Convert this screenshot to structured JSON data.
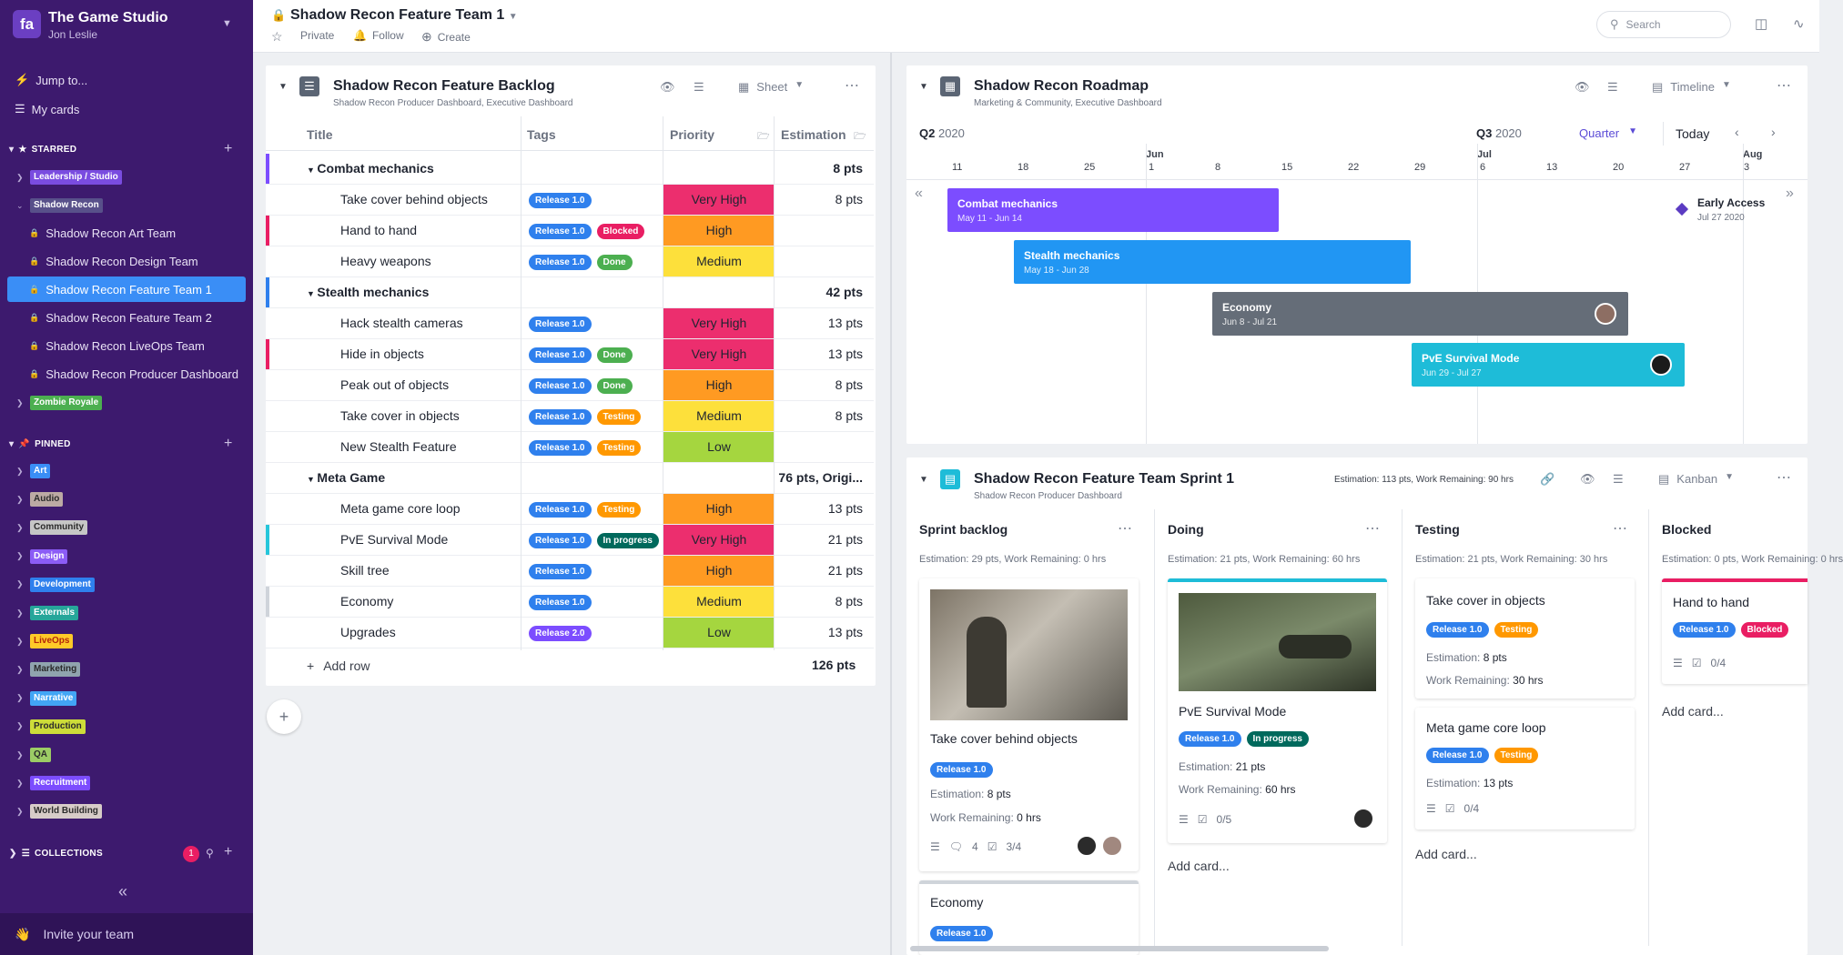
{
  "workspace": {
    "logo": "fa",
    "name": "The Game Studio",
    "user": "Jon Leslie"
  },
  "nav": {
    "jump": "Jump to...",
    "cards": "My cards"
  },
  "starred": {
    "label": "STARRED",
    "items": [
      {
        "label": "Leadership / Studio",
        "color": "#7a4ce0"
      },
      {
        "label": "Shadow Recon",
        "color": "#58508a"
      },
      {
        "label": "Zombie Royale",
        "color": "#4caf50"
      }
    ],
    "sub": [
      "Shadow Recon Art Team",
      "Shadow Recon Design Team",
      "Shadow Recon Feature Team 1",
      "Shadow Recon Feature Team 2",
      "Shadow Recon LiveOps Team",
      "Shadow Recon Producer Dashboard"
    ]
  },
  "pinned": {
    "label": "PINNED",
    "items": [
      {
        "label": "Art",
        "color": "#3a8ef6",
        "text": "#fff"
      },
      {
        "label": "Audio",
        "color": "#bcaaa4",
        "text": "#2b2b2b"
      },
      {
        "label": "Community",
        "color": "#c6c6c6",
        "text": "#2b2b2b"
      },
      {
        "label": "Design",
        "color": "#8b5cf6",
        "text": "#fff"
      },
      {
        "label": "Development",
        "color": "#2f80ed",
        "text": "#fff"
      },
      {
        "label": "Externals",
        "color": "#26a69a",
        "text": "#fff"
      },
      {
        "label": "LiveOps",
        "color": "#ffca28",
        "text": "#b3260a"
      },
      {
        "label": "Marketing",
        "color": "#90a4ae",
        "text": "#2b2b2b"
      },
      {
        "label": "Narrative",
        "color": "#42a5f5",
        "text": "#fff"
      },
      {
        "label": "Production",
        "color": "#cddc39",
        "text": "#2b2b2b"
      },
      {
        "label": "QA",
        "color": "#9ccc65",
        "text": "#2b2b2b"
      },
      {
        "label": "Recruitment",
        "color": "#7c4dff",
        "text": "#fff"
      },
      {
        "label": "World Building",
        "color": "#d7ccc8",
        "text": "#2b2b2b"
      }
    ]
  },
  "collections": {
    "label": "COLLECTIONS",
    "badge": "1"
  },
  "invite": "Invite your team",
  "doc": {
    "title": "Shadow Recon Feature Team 1",
    "private": "Private",
    "follow": "Follow",
    "create": "Create"
  },
  "search": {
    "placeholder": "Search"
  },
  "backlog": {
    "title": "Shadow Recon Feature Backlog",
    "sub": "Shadow Recon Producer Dashboard,  Executive Dashboard",
    "view": "Sheet",
    "cols": [
      "Title",
      "Tags",
      "Priority",
      "Estimation"
    ],
    "rows": [
      {
        "t": "Combat mechanics",
        "g": true,
        "est": "8 pts",
        "bar": "#7c4dff"
      },
      {
        "t": "Take cover behind objects",
        "tags": [
          [
            "Release 1.0",
            "#2f80ed"
          ]
        ],
        "p": "Very High",
        "est": "8 pts"
      },
      {
        "t": "Hand to hand",
        "tags": [
          [
            "Release 1.0",
            "#2f80ed"
          ],
          [
            "Blocked",
            "#e91e63"
          ]
        ],
        "p": "High",
        "bar": "#e91e63"
      },
      {
        "t": "Heavy weapons",
        "tags": [
          [
            "Release 1.0",
            "#2f80ed"
          ],
          [
            "Done",
            "#4caf50"
          ]
        ],
        "p": "Medium"
      },
      {
        "t": "Stealth mechanics",
        "g": true,
        "est": "42 pts",
        "bar": "#2f80ed"
      },
      {
        "t": "Hack stealth cameras",
        "tags": [
          [
            "Release 1.0",
            "#2f80ed"
          ]
        ],
        "p": "Very High",
        "est": "13 pts"
      },
      {
        "t": "Hide in objects",
        "tags": [
          [
            "Release 1.0",
            "#2f80ed"
          ],
          [
            "Done",
            "#4caf50"
          ]
        ],
        "p": "Very High",
        "est": "13 pts",
        "bar": "#e91e63"
      },
      {
        "t": "Peak out of objects",
        "tags": [
          [
            "Release 1.0",
            "#2f80ed"
          ],
          [
            "Done",
            "#4caf50"
          ]
        ],
        "p": "High",
        "est": "8 pts"
      },
      {
        "t": "Take cover in objects",
        "tags": [
          [
            "Release 1.0",
            "#2f80ed"
          ],
          [
            "Testing",
            "#ff9800"
          ]
        ],
        "p": "Medium",
        "est": "8 pts"
      },
      {
        "t": "New Stealth Feature",
        "tags": [
          [
            "Release 1.0",
            "#2f80ed"
          ],
          [
            "Testing",
            "#ff9800"
          ]
        ],
        "p": "Low"
      },
      {
        "t": "Meta Game",
        "g": true,
        "est": "76 pts, Origi..."
      },
      {
        "t": "Meta game core loop",
        "tags": [
          [
            "Release 1.0",
            "#2f80ed"
          ],
          [
            "Testing",
            "#ff9800"
          ]
        ],
        "p": "High",
        "est": "13 pts"
      },
      {
        "t": "PvE Survival Mode",
        "tags": [
          [
            "Release 1.0",
            "#2f80ed"
          ],
          [
            "In progress",
            "#00695c"
          ]
        ],
        "p": "Very High",
        "est": "21 pts",
        "bar": "#26c6da"
      },
      {
        "t": "Skill tree",
        "tags": [
          [
            "Release 1.0",
            "#2f80ed"
          ]
        ],
        "p": "High",
        "est": "21 pts"
      },
      {
        "t": "Economy",
        "tags": [
          [
            "Release 1.0",
            "#2f80ed"
          ]
        ],
        "p": "Medium",
        "est": "8 pts",
        "bar": "#cfd4da"
      },
      {
        "t": "Upgrades",
        "tags": [
          [
            "Release 2.0",
            "#7c4dff"
          ]
        ],
        "p": "Low",
        "est": "13 pts"
      }
    ],
    "add_row": "Add row",
    "total": "126 pts"
  },
  "priority_colors": {
    "Very High": "#ec2e6e",
    "High": "#ff9a22",
    "Medium": "#fde03b",
    "Low": "#a5d63f"
  },
  "roadmap": {
    "title": "Shadow Recon Roadmap",
    "sub": "Marketing & Community,  Executive Dashboard",
    "view": "Timeline",
    "q2": "Q2",
    "q2y": "2020",
    "q3": "Q3",
    "q3y": "2020",
    "zoom": "Quarter",
    "today": "Today",
    "months": [
      "Jun",
      "Jul",
      "Aug"
    ],
    "ticks": [
      "11",
      "18",
      "25",
      "1",
      "8",
      "15",
      "22",
      "29",
      "6",
      "13",
      "20",
      "27",
      "3"
    ],
    "bars": [
      {
        "t": "Combat mechanics",
        "d": "May 11 - Jun 14",
        "c": "#7c4dff"
      },
      {
        "t": "Stealth mechanics",
        "d": "May 18 - Jun 28",
        "c": "#2196f3"
      },
      {
        "t": "Economy",
        "d": "Jun 8 - Jul 21",
        "c": "#656d78"
      },
      {
        "t": "PvE Survival Mode",
        "d": "Jun 29 - Jul 27",
        "c": "#1ebcd8"
      }
    ],
    "milestone": {
      "t": "Early Access",
      "d": "Jul 27 2020"
    }
  },
  "sprint": {
    "title": "Shadow Recon Feature Team Sprint 1",
    "sub": "Shadow Recon Producer Dashboard",
    "meta": "Estimation: 113 pts, Work Remaining: 90 hrs",
    "view": "Kanban",
    "cols": [
      {
        "t": "Sprint backlog",
        "s": "Estimation: 29 pts, Work Remaining: 0 hrs"
      },
      {
        "t": "Doing",
        "s": "Estimation: 21 pts, Work Remaining: 60 hrs"
      },
      {
        "t": "Testing",
        "s": "Estimation: 21 pts, Work Remaining: 30 hrs"
      },
      {
        "t": "Blocked",
        "s": "Estimation: 0 pts, Work Remaining: 0 hrs"
      }
    ],
    "cards": {
      "c1": {
        "t": "Take cover behind objects",
        "tag": "Release 1.0",
        "est": "8 pts",
        "wr": "0 hrs",
        "comments": "4",
        "checks": "3/4"
      },
      "c1b": {
        "t": "Economy",
        "tag": "Release 1.0"
      },
      "c2": {
        "t": "PvE Survival Mode",
        "tag": "Release 1.0",
        "tag2": "In progress",
        "est": "21 pts",
        "wr": "60 hrs",
        "checks": "0/5"
      },
      "c3": {
        "t": "Take cover in objects",
        "tag": "Release 1.0",
        "tag2": "Testing",
        "est": "8 pts",
        "wr": "30 hrs"
      },
      "c4": {
        "t": "Meta game core loop",
        "tag": "Release 1.0",
        "tag2": "Testing",
        "est": "13 pts",
        "checks": "0/4"
      },
      "c5": {
        "t": "Hand to hand",
        "tag": "Release 1.0",
        "tag2": "Blocked",
        "checks": "0/4"
      }
    },
    "est_label": "Estimation:",
    "wr_label": "Work Remaining:",
    "add_card": "Add card..."
  }
}
